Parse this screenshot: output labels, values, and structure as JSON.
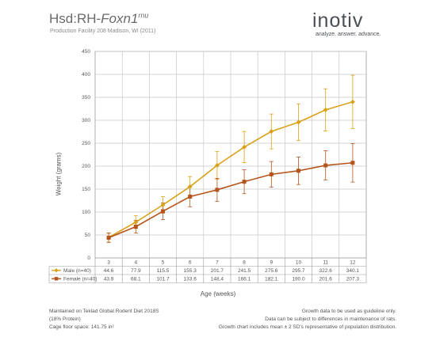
{
  "header": {
    "title_prefix": "Hsd:RH-",
    "title_gene": "Foxn1",
    "title_sup": "rnu",
    "subtitle": "Production Facility 208 Madison, WI (2011)",
    "logo": "inotiv",
    "tagline": "analyze. answer. advance."
  },
  "chart_data": {
    "type": "line",
    "x": [
      3,
      4,
      5,
      6,
      7,
      8,
      9,
      10,
      11,
      12
    ],
    "xlabel": "Age (weeks)",
    "ylabel": "Weight (grams)",
    "ylim": [
      0,
      450
    ],
    "yticks": [
      0,
      50,
      100,
      150,
      200,
      250,
      300,
      350,
      400,
      450
    ],
    "grid": true,
    "series": [
      {
        "name": "Male (n=40)",
        "color": "#d9a21a",
        "marker": "diamond",
        "values": [
          44.6,
          77.9,
          115.5,
          155.3,
          201.7,
          241.5,
          275.6,
          295.7,
          322.6,
          340.1
        ],
        "labels": [
          "44.6",
          "77.9",
          "115.5",
          "155.3",
          "201.7",
          "241.5",
          "275.6",
          "295.7",
          "322.6",
          "340.1"
        ],
        "error": [
          10,
          14,
          18,
          22,
          30,
          34,
          38,
          40,
          46,
          58
        ]
      },
      {
        "name": "Female (n=40)",
        "color": "#b5541b",
        "marker": "square",
        "values": [
          43.9,
          68.1,
          101.7,
          133.6,
          148.4,
          166.1,
          182.1,
          190.0,
          201.6,
          207.3
        ],
        "labels": [
          "43.9",
          "68.1",
          "101.7",
          "133.6",
          "148.4",
          "166.1",
          "182.1",
          "190.0",
          "201.6",
          "207.3"
        ],
        "error": [
          10,
          14,
          18,
          22,
          25,
          26,
          28,
          30,
          32,
          42
        ]
      }
    ],
    "xtick_labels": [
      "3",
      "4",
      "5",
      "6",
      "7",
      "8",
      "9",
      "10",
      "11",
      "12"
    ],
    "ytick_labels": [
      "0",
      "50",
      "100",
      "150",
      "200",
      "250",
      "300",
      "350",
      "400",
      "450"
    ]
  },
  "footer": {
    "left_line1": "Maintained on Teklad Global Rodent Diet 2018S",
    "left_line2": "(18% Protein)",
    "left_line3": "Cage floor space: 141.75 in²",
    "right_line1": "Growth data to be used as guideline only.",
    "right_line2": "Data can be subject to differences in maintenance of rats.",
    "right_line3": "Growth chart includes mean ± 2 SD's representative of population distribution."
  }
}
